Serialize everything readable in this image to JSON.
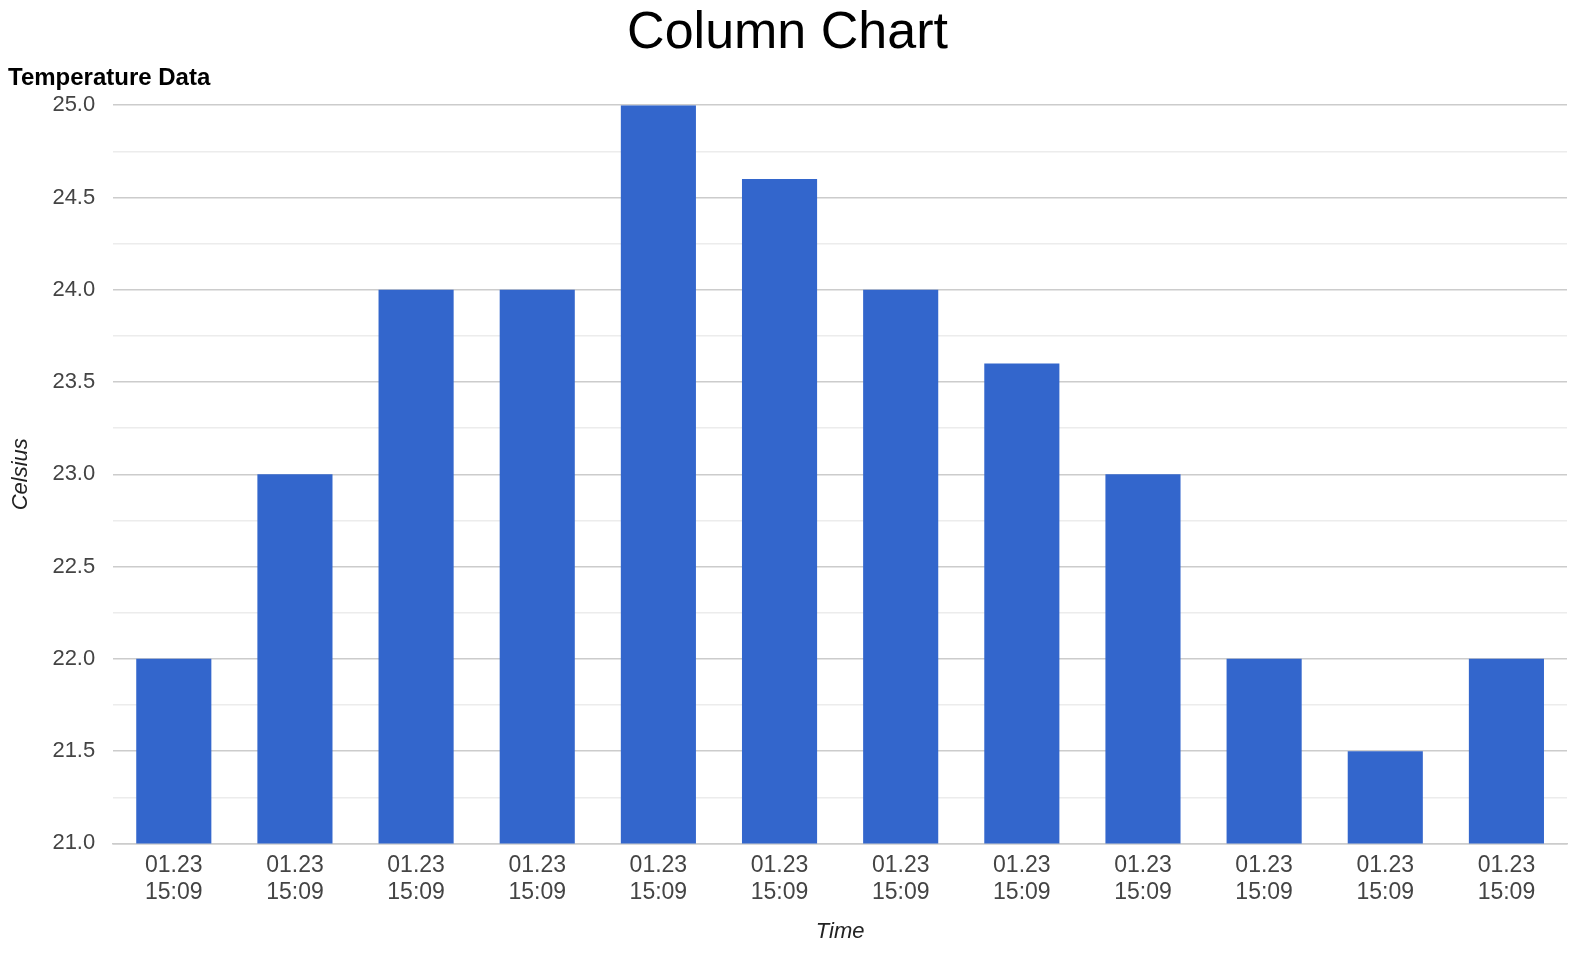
{
  "chart_data": {
    "type": "bar",
    "title": "Column Chart",
    "subtitle": "Temperature Data",
    "xlabel": "Time",
    "ylabel": "Celsius",
    "categories": [
      "01.23\n15:09",
      "01.23\n15:09",
      "01.23\n15:09",
      "01.23\n15:09",
      "01.23\n15:09",
      "01.23\n15:09",
      "01.23\n15:09",
      "01.23\n15:09",
      "01.23\n15:09",
      "01.23\n15:09",
      "01.23\n15:09",
      "01.23\n15:09"
    ],
    "values": [
      22,
      23,
      24,
      24,
      25,
      24.6,
      24,
      23.6,
      23,
      22,
      21.5,
      22
    ],
    "color": "#3366cc",
    "ylim": [
      21,
      25
    ],
    "yticks": [
      {
        "value": 21,
        "label": "21.0"
      },
      {
        "value": 21.25,
        "label": null
      },
      {
        "value": 21.5,
        "label": "21.5"
      },
      {
        "value": 21.75,
        "label": null
      },
      {
        "value": 22,
        "label": "22.0"
      },
      {
        "value": 22.25,
        "label": null
      },
      {
        "value": 22.5,
        "label": "22.5"
      },
      {
        "value": 22.75,
        "label": null
      },
      {
        "value": 23,
        "label": "23.0"
      },
      {
        "value": 23.25,
        "label": null
      },
      {
        "value": 23.5,
        "label": "23.5"
      },
      {
        "value": 23.75,
        "label": null
      },
      {
        "value": 24,
        "label": "24.0"
      },
      {
        "value": 24.25,
        "label": null
      },
      {
        "value": 24.5,
        "label": "24.5"
      },
      {
        "value": 24.75,
        "label": null
      },
      {
        "value": 25,
        "label": "25.0"
      }
    ],
    "grid": "y",
    "legend": false
  }
}
